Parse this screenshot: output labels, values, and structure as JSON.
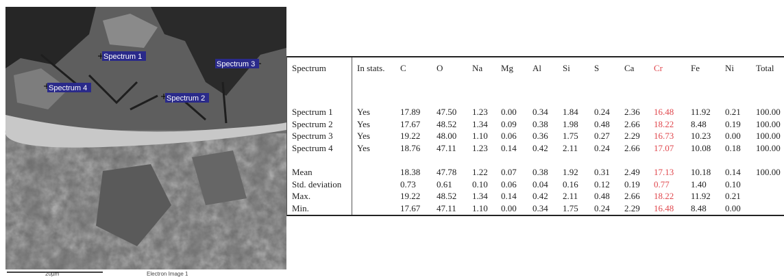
{
  "image": {
    "spectrum_labels": [
      "Spectrum 1",
      "Spectrum 2",
      "Spectrum 3",
      "Spectrum 4"
    ],
    "scale": "20µm",
    "caption": "Electron Image 1"
  },
  "table": {
    "columns": [
      "Spectrum",
      "In stats.",
      "C",
      "O",
      "Na",
      "Mg",
      "Al",
      "Si",
      "S",
      "Ca",
      "Cr",
      "Fe",
      "Ni",
      "Total"
    ],
    "rows": [
      [
        "Spectrum 1",
        "Yes",
        "17.89",
        "47.50",
        "1.23",
        "0.00",
        "0.34",
        "1.84",
        "0.24",
        "2.36",
        "16.48",
        "11.92",
        "0.21",
        "100.00"
      ],
      [
        "Spectrum 2",
        "Yes",
        "17.67",
        "48.52",
        "1.34",
        "0.09",
        "0.38",
        "1.98",
        "0.48",
        "2.66",
        "18.22",
        "8.48",
        "0.19",
        "100.00"
      ],
      [
        "Spectrum 3",
        "Yes",
        "19.22",
        "48.00",
        "1.10",
        "0.06",
        "0.36",
        "1.75",
        "0.27",
        "2.29",
        "16.73",
        "10.23",
        "0.00",
        "100.00"
      ],
      [
        "Spectrum 4",
        "Yes",
        "18.76",
        "47.11",
        "1.23",
        "0.14",
        "0.42",
        "2.11",
        "0.24",
        "2.66",
        "17.07",
        "10.08",
        "0.18",
        "100.00"
      ]
    ],
    "stats": [
      {
        "label": "Mean",
        "values": [
          "18.38",
          "47.78",
          "1.22",
          "0.07",
          "0.38",
          "1.92",
          "0.31",
          "2.49",
          "17.13",
          "10.18",
          "0.14",
          "100.00"
        ]
      },
      {
        "label": "Std. deviation",
        "values": [
          "0.73",
          "0.61",
          "0.10",
          "0.06",
          "0.04",
          "0.16",
          "0.12",
          "0.19",
          "0.77",
          "1.40",
          "0.10"
        ]
      },
      {
        "label": "Max.",
        "values": [
          "19.22",
          "48.52",
          "1.34",
          "0.14",
          "0.42",
          "2.11",
          "0.48",
          "2.66",
          "18.22",
          "11.92",
          "0.21"
        ]
      },
      {
        "label": "Min.",
        "values": [
          "17.67",
          "47.11",
          "1.10",
          "0.00",
          "0.34",
          "1.75",
          "0.24",
          "2.29",
          "16.48",
          "8.48",
          "0.00"
        ]
      }
    ]
  }
}
